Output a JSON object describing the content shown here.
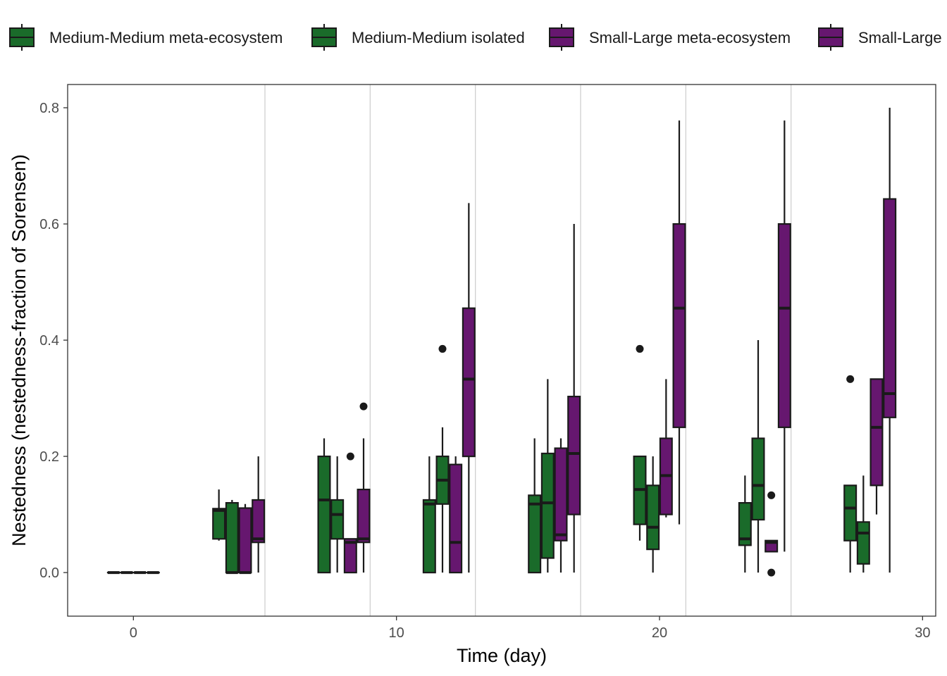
{
  "chart_data": {
    "type": "boxplot",
    "xlabel": "Time (day)",
    "ylabel": "Nestedness (nestedness-fraction of Sorensen)",
    "xlim": [
      -2.5,
      30.5
    ],
    "ylim": [
      -0.075,
      0.84
    ],
    "x_ticks": [
      0,
      10,
      20,
      30
    ],
    "y_ticks": [
      0.0,
      0.2,
      0.4,
      0.6,
      0.8
    ],
    "y_tick_labels": [
      "0.0",
      "0.2",
      "0.4",
      "0.6",
      "0.8"
    ],
    "sampling_boundaries": [
      5,
      9,
      13,
      17,
      21,
      25
    ],
    "legend_position": "top",
    "grid": "vertical boundary lines only",
    "series": [
      {
        "name": "Medium-Medium meta-ecosystem",
        "color": "#1a6b2a"
      },
      {
        "name": "Medium-Medium isolated",
        "color": "#1a6b2a"
      },
      {
        "name": "Small-Large meta-ecosystem",
        "color": "#66176f"
      },
      {
        "name": "Small-Large",
        "color": "#66176f"
      }
    ],
    "boxes": [
      {
        "series": 0,
        "x": -0.75,
        "whisker_low": 0.0,
        "q1": 0.0,
        "median": 0.0,
        "q3": 0.0,
        "whisker_high": 0.0,
        "outliers": []
      },
      {
        "series": 1,
        "x": -0.25,
        "whisker_low": 0.0,
        "q1": 0.0,
        "median": 0.0,
        "q3": 0.0,
        "whisker_high": 0.0,
        "outliers": []
      },
      {
        "series": 2,
        "x": 0.25,
        "whisker_low": 0.0,
        "q1": 0.0,
        "median": 0.0,
        "q3": 0.0,
        "whisker_high": 0.0,
        "outliers": []
      },
      {
        "series": 3,
        "x": 0.75,
        "whisker_low": 0.0,
        "q1": 0.0,
        "median": 0.0,
        "q3": 0.0,
        "whisker_high": 0.0,
        "outliers": []
      },
      {
        "series": 0,
        "x": 3.25,
        "whisker_low": 0.055,
        "q1": 0.058,
        "median": 0.107,
        "q3": 0.11,
        "whisker_high": 0.143,
        "outliers": []
      },
      {
        "series": 1,
        "x": 3.75,
        "whisker_low": 0.0,
        "q1": 0.0,
        "median": 0.0,
        "q3": 0.12,
        "whisker_high": 0.125,
        "outliers": []
      },
      {
        "series": 2,
        "x": 4.25,
        "whisker_low": 0.0,
        "q1": 0.0,
        "median": 0.0,
        "q3": 0.111,
        "whisker_high": 0.118,
        "outliers": []
      },
      {
        "series": 3,
        "x": 4.75,
        "whisker_low": 0.0,
        "q1": 0.052,
        "median": 0.058,
        "q3": 0.125,
        "whisker_high": 0.2,
        "outliers": []
      },
      {
        "series": 0,
        "x": 7.25,
        "whisker_low": 0.0,
        "q1": 0.0,
        "median": 0.125,
        "q3": 0.2,
        "whisker_high": 0.231,
        "outliers": []
      },
      {
        "series": 1,
        "x": 7.75,
        "whisker_low": 0.0,
        "q1": 0.058,
        "median": 0.1,
        "q3": 0.125,
        "whisker_high": 0.2,
        "outliers": []
      },
      {
        "series": 2,
        "x": 8.25,
        "whisker_low": 0.0,
        "q1": 0.0,
        "median": 0.052,
        "q3": 0.058,
        "whisker_high": 0.058,
        "outliers": [
          0.2
        ]
      },
      {
        "series": 3,
        "x": 8.75,
        "whisker_low": 0.0,
        "q1": 0.052,
        "median": 0.058,
        "q3": 0.143,
        "whisker_high": 0.231,
        "outliers": [
          0.286
        ]
      },
      {
        "series": 0,
        "x": 11.25,
        "whisker_low": 0.0,
        "q1": 0.0,
        "median": 0.118,
        "q3": 0.125,
        "whisker_high": 0.2,
        "outliers": []
      },
      {
        "series": 1,
        "x": 11.75,
        "whisker_low": 0.0,
        "q1": 0.118,
        "median": 0.159,
        "q3": 0.2,
        "whisker_high": 0.25,
        "outliers": [
          0.385
        ]
      },
      {
        "series": 2,
        "x": 12.25,
        "whisker_low": 0.0,
        "q1": 0.0,
        "median": 0.052,
        "q3": 0.186,
        "whisker_high": 0.2,
        "outliers": []
      },
      {
        "series": 3,
        "x": 12.75,
        "whisker_low": 0.0,
        "q1": 0.2,
        "median": 0.333,
        "q3": 0.455,
        "whisker_high": 0.636,
        "outliers": []
      },
      {
        "series": 0,
        "x": 15.25,
        "whisker_low": 0.0,
        "q1": 0.0,
        "median": 0.118,
        "q3": 0.133,
        "whisker_high": 0.231,
        "outliers": []
      },
      {
        "series": 1,
        "x": 15.75,
        "whisker_low": 0.0,
        "q1": 0.025,
        "median": 0.12,
        "q3": 0.205,
        "whisker_high": 0.333,
        "outliers": []
      },
      {
        "series": 2,
        "x": 16.25,
        "whisker_low": 0.0,
        "q1": 0.055,
        "median": 0.065,
        "q3": 0.214,
        "whisker_high": 0.231,
        "outliers": []
      },
      {
        "series": 3,
        "x": 16.75,
        "whisker_low": 0.0,
        "q1": 0.1,
        "median": 0.205,
        "q3": 0.303,
        "whisker_high": 0.6,
        "outliers": []
      },
      {
        "series": 0,
        "x": 19.25,
        "whisker_low": 0.055,
        "q1": 0.083,
        "median": 0.143,
        "q3": 0.2,
        "whisker_high": 0.2,
        "outliers": [
          0.385
        ]
      },
      {
        "series": 1,
        "x": 19.75,
        "whisker_low": 0.0,
        "q1": 0.04,
        "median": 0.078,
        "q3": 0.15,
        "whisker_high": 0.2,
        "outliers": []
      },
      {
        "series": 2,
        "x": 20.25,
        "whisker_low": 0.095,
        "q1": 0.1,
        "median": 0.167,
        "q3": 0.231,
        "whisker_high": 0.333,
        "outliers": []
      },
      {
        "series": 3,
        "x": 20.75,
        "whisker_low": 0.083,
        "q1": 0.25,
        "median": 0.455,
        "q3": 0.6,
        "whisker_high": 0.778,
        "outliers": []
      },
      {
        "series": 0,
        "x": 23.25,
        "whisker_low": 0.0,
        "q1": 0.047,
        "median": 0.058,
        "q3": 0.12,
        "whisker_high": 0.167,
        "outliers": []
      },
      {
        "series": 1,
        "x": 23.75,
        "whisker_low": 0.0,
        "q1": 0.091,
        "median": 0.15,
        "q3": 0.231,
        "whisker_high": 0.4,
        "outliers": []
      },
      {
        "series": 2,
        "x": 24.25,
        "whisker_low": 0.036,
        "q1": 0.036,
        "median": 0.052,
        "q3": 0.055,
        "whisker_high": 0.055,
        "outliers": [
          0.133,
          0.0
        ]
      },
      {
        "series": 3,
        "x": 24.75,
        "whisker_low": 0.036,
        "q1": 0.25,
        "median": 0.455,
        "q3": 0.6,
        "whisker_high": 0.778,
        "outliers": []
      },
      {
        "series": 0,
        "x": 27.25,
        "whisker_low": 0.0,
        "q1": 0.055,
        "median": 0.111,
        "q3": 0.15,
        "whisker_high": 0.15,
        "outliers": [
          0.333
        ]
      },
      {
        "series": 1,
        "x": 27.75,
        "whisker_low": 0.0,
        "q1": 0.015,
        "median": 0.068,
        "q3": 0.087,
        "whisker_high": 0.167,
        "outliers": []
      },
      {
        "series": 2,
        "x": 28.25,
        "whisker_low": 0.1,
        "q1": 0.15,
        "median": 0.25,
        "q3": 0.333,
        "whisker_high": 0.333,
        "outliers": []
      },
      {
        "series": 3,
        "x": 28.75,
        "whisker_low": 0.0,
        "q1": 0.267,
        "median": 0.308,
        "q3": 0.643,
        "whisker_high": 0.8,
        "outliers": []
      }
    ]
  }
}
